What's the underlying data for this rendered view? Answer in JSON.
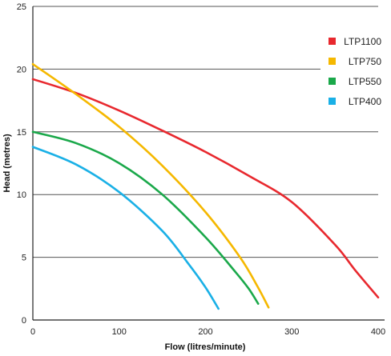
{
  "chart_data": {
    "type": "line",
    "title": "",
    "xlabel": "Flow (litres/minute)",
    "ylabel": "Head (metres)",
    "xlim": [
      0,
      400
    ],
    "ylim": [
      0,
      25
    ],
    "x_ticks": [
      0,
      100,
      200,
      300,
      400
    ],
    "y_ticks": [
      0,
      5,
      10,
      15,
      20,
      25
    ],
    "grid": "horizontal",
    "legend_position": "top-right",
    "series": [
      {
        "name": "LTP1100",
        "color": "#e8282e",
        "points": [
          [
            0,
            19.2
          ],
          [
            50,
            18.1
          ],
          [
            100,
            16.7
          ],
          [
            150,
            15.1
          ],
          [
            200,
            13.4
          ],
          [
            250,
            11.5
          ],
          [
            300,
            9.4
          ],
          [
            350,
            6.0
          ],
          [
            373,
            4.0
          ],
          [
            400,
            1.8
          ]
        ]
      },
      {
        "name": "LTP750",
        "color": "#f5b800",
        "points": [
          [
            0,
            20.4
          ],
          [
            50,
            18.0
          ],
          [
            100,
            15.4
          ],
          [
            150,
            12.3
          ],
          [
            200,
            8.6
          ],
          [
            240,
            5.0
          ],
          [
            260,
            2.7
          ],
          [
            273,
            1.0
          ]
        ]
      },
      {
        "name": "LTP550",
        "color": "#1aa84a",
        "points": [
          [
            0,
            15.0
          ],
          [
            50,
            14.1
          ],
          [
            100,
            12.5
          ],
          [
            150,
            10.0
          ],
          [
            200,
            6.6
          ],
          [
            235,
            3.8
          ],
          [
            250,
            2.5
          ],
          [
            261,
            1.3
          ]
        ]
      },
      {
        "name": "LTP400",
        "color": "#1ab0e6",
        "points": [
          [
            0,
            13.8
          ],
          [
            50,
            12.4
          ],
          [
            100,
            10.2
          ],
          [
            150,
            7.1
          ],
          [
            180,
            4.5
          ],
          [
            200,
            2.6
          ],
          [
            215,
            0.9
          ]
        ]
      }
    ]
  }
}
